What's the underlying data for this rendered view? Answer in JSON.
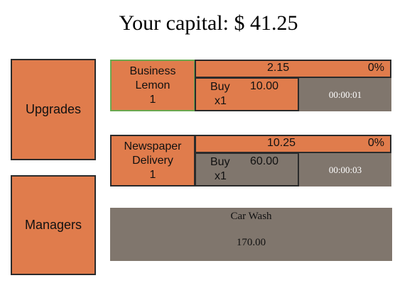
{
  "header": {
    "capital_text": "Your capital: $ 41.25"
  },
  "sidebar": {
    "upgrades_label": "Upgrades",
    "managers_label": "Managers"
  },
  "businesses": [
    {
      "name_line1": "Business",
      "name_line2": "Lemon",
      "count": "1",
      "revenue": "2.15",
      "progress": "0%",
      "buy_label": "Buy",
      "buy_multiplier": "x1",
      "buy_cost": "10.00",
      "timer": "00:00:01",
      "buy_button_color": "#e07c4c"
    },
    {
      "name_line1": "Newspaper",
      "name_line2": "Delivery",
      "count": "1",
      "revenue": "10.25",
      "progress": "0%",
      "buy_label": "Buy",
      "buy_multiplier": "x1",
      "buy_cost": "60.00",
      "timer": "00:00:03",
      "buy_button_color": "#80766d"
    }
  ],
  "locked_business": {
    "name": "Car Wash",
    "cost": "170.00"
  },
  "colors": {
    "accent_orange": "#e07c4c",
    "locked_gray": "#80766d",
    "selected_border": "#6aa84f"
  }
}
